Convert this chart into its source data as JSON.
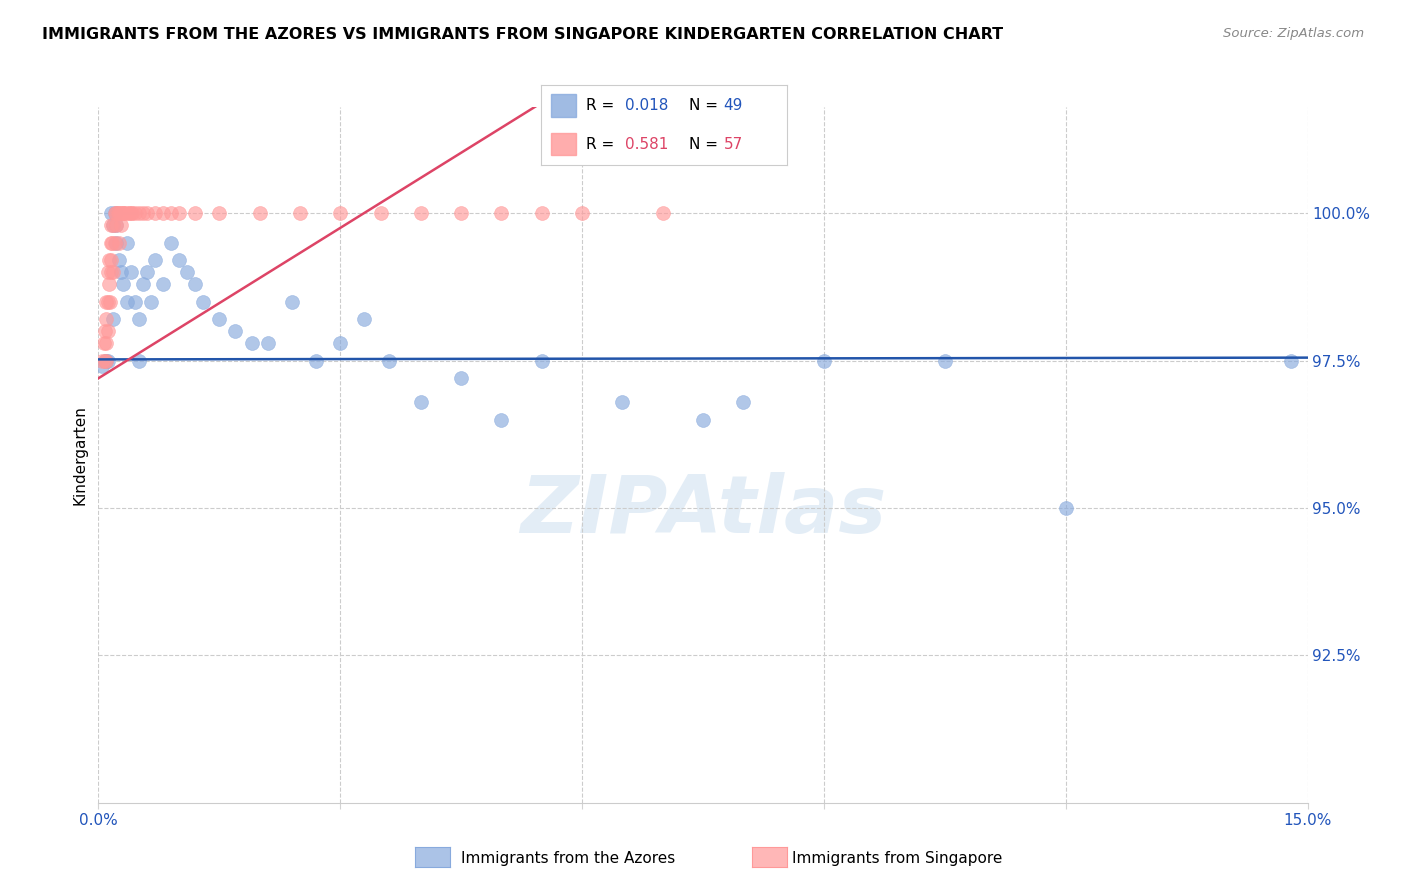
{
  "title": "IMMIGRANTS FROM THE AZORES VS IMMIGRANTS FROM SINGAPORE KINDERGARTEN CORRELATION CHART",
  "source": "Source: ZipAtlas.com",
  "ylabel": "Kindergarten",
  "xmin": 0.0,
  "xmax": 15.0,
  "ymin": 90.0,
  "ymax": 101.8,
  "yticks": [
    92.5,
    95.0,
    97.5,
    100.0
  ],
  "ytick_labels": [
    "92.5%",
    "95.0%",
    "97.5%",
    "100.0%"
  ],
  "color_azores": "#88AADD",
  "color_singapore": "#FF9999",
  "color_azores_line": "#2255AA",
  "color_singapore_line": "#DD4466",
  "color_r_blue": "#2255BB",
  "color_r_pink": "#DD4466",
  "azores_x": [
    0.05,
    0.08,
    0.1,
    0.12,
    0.15,
    0.18,
    0.2,
    0.22,
    0.25,
    0.28,
    0.3,
    0.35,
    0.4,
    0.45,
    0.5,
    0.55,
    0.6,
    0.65,
    0.7,
    0.8,
    0.9,
    1.0,
    1.1,
    1.2,
    1.3,
    1.5,
    1.7,
    1.9,
    2.1,
    2.4,
    2.7,
    3.0,
    3.3,
    3.6,
    4.0,
    4.5,
    5.0,
    5.5,
    6.5,
    7.5,
    8.0,
    9.0,
    10.5,
    12.0,
    14.8,
    0.18,
    0.22,
    0.35,
    0.5
  ],
  "azores_y": [
    97.4,
    97.5,
    97.5,
    97.5,
    100.0,
    99.8,
    100.0,
    99.5,
    99.2,
    99.0,
    98.8,
    99.5,
    99.0,
    98.5,
    98.2,
    98.8,
    99.0,
    98.5,
    99.2,
    98.8,
    99.5,
    99.2,
    99.0,
    98.8,
    98.5,
    98.2,
    98.0,
    97.8,
    97.8,
    98.5,
    97.5,
    97.8,
    98.2,
    97.5,
    96.8,
    97.2,
    96.5,
    97.5,
    96.8,
    96.5,
    96.8,
    97.5,
    97.5,
    95.0,
    97.5,
    98.2,
    99.8,
    98.5,
    97.5
  ],
  "singapore_x": [
    0.05,
    0.07,
    0.08,
    0.08,
    0.09,
    0.1,
    0.1,
    0.1,
    0.12,
    0.12,
    0.12,
    0.13,
    0.13,
    0.14,
    0.15,
    0.15,
    0.15,
    0.16,
    0.17,
    0.18,
    0.18,
    0.2,
    0.2,
    0.22,
    0.22,
    0.24,
    0.25,
    0.25,
    0.27,
    0.28,
    0.3,
    0.3,
    0.32,
    0.35,
    0.38,
    0.4,
    0.42,
    0.45,
    0.5,
    0.55,
    0.6,
    0.7,
    0.8,
    0.9,
    1.0,
    1.2,
    1.5,
    2.0,
    2.5,
    3.0,
    3.5,
    4.0,
    4.5,
    5.0,
    5.5,
    6.0,
    7.0
  ],
  "singapore_y": [
    97.5,
    97.8,
    97.5,
    98.0,
    97.5,
    97.8,
    98.2,
    98.5,
    98.0,
    98.5,
    99.0,
    98.8,
    99.2,
    98.5,
    99.0,
    99.5,
    99.8,
    99.2,
    99.5,
    99.0,
    99.8,
    99.5,
    100.0,
    100.0,
    99.8,
    100.0,
    99.5,
    100.0,
    100.0,
    99.8,
    100.0,
    100.0,
    100.0,
    100.0,
    100.0,
    100.0,
    100.0,
    100.0,
    100.0,
    100.0,
    100.0,
    100.0,
    100.0,
    100.0,
    100.0,
    100.0,
    100.0,
    100.0,
    100.0,
    100.0,
    100.0,
    100.0,
    100.0,
    100.0,
    100.0,
    100.0,
    100.0
  ]
}
